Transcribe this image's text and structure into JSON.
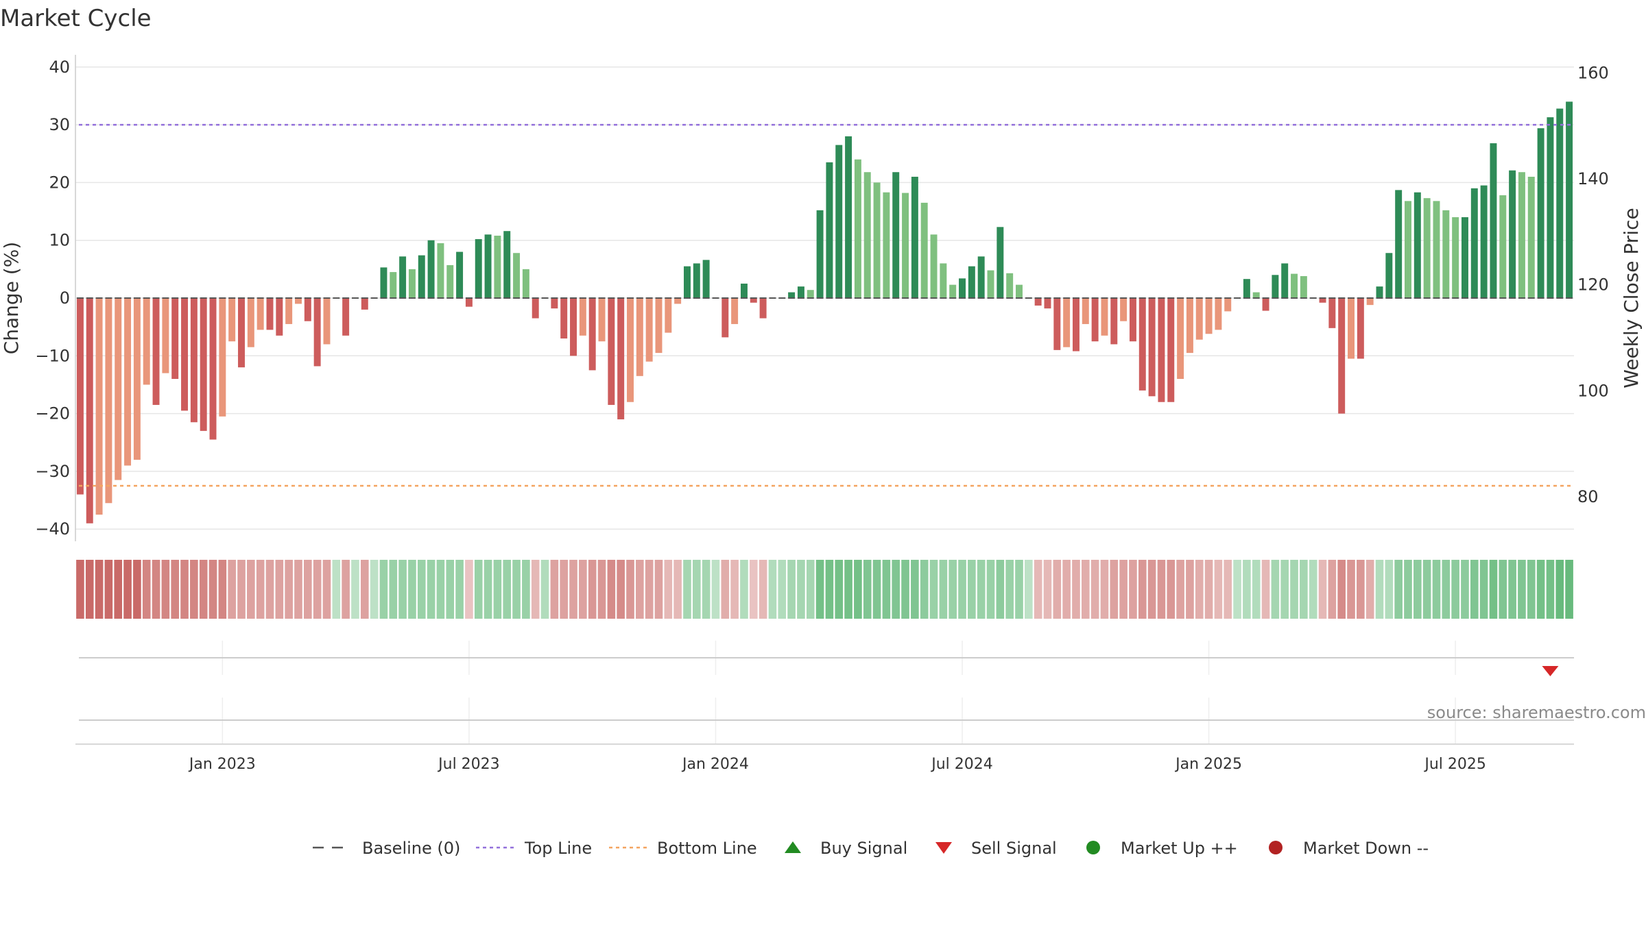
{
  "colors": {
    "dark_green": "#2e8b57",
    "light_green": "#7fc07f",
    "dark_red": "#cd5c5c",
    "light_red": "#e9967a",
    "top_line": "#9370db",
    "bottom_line": "#f4a460",
    "baseline": "#555555",
    "buy": "#228b22",
    "sell": "#d62728",
    "market_up": "#228b22",
    "market_down": "#b22222",
    "grid": "#e6e6e6"
  },
  "chart_data": {
    "type": "bar",
    "title": "Market Cycle",
    "ylabel": "Change (%)",
    "y2label": "Weekly Close Price",
    "source": "source: sharemaestro.com",
    "ylim": [
      -42,
      42
    ],
    "y2lim": [
      71.7,
      163.3
    ],
    "yticks": [
      40,
      30,
      20,
      10,
      0,
      -10,
      -20,
      -30,
      -40
    ],
    "yticklabels": [
      "40",
      "30",
      "20",
      "10",
      "0",
      "−10",
      "−20",
      "−30",
      "−40"
    ],
    "y2ticks": [
      160,
      140,
      120,
      100,
      80
    ],
    "y2ticklabels": [
      "160",
      "140",
      "120",
      "100",
      "80"
    ],
    "top_line": 30,
    "bottom_line": -32.5,
    "xticks": [
      {
        "label": "Jan 2023",
        "index": 15
      },
      {
        "label": "Jul 2023",
        "index": 41
      },
      {
        "label": "Jan 2024",
        "index": 67
      },
      {
        "label": "Jul 2024",
        "index": 93
      },
      {
        "label": "Jan 2025",
        "index": 119
      },
      {
        "label": "Jul 2025",
        "index": 145
      }
    ],
    "values": [
      -34,
      -39,
      -37.5,
      -35.5,
      -31.5,
      -29,
      -28,
      -15,
      -18.5,
      -13,
      -14,
      -19.5,
      -21.5,
      -23,
      -24.5,
      -20.5,
      -7.5,
      -12,
      -8.5,
      -5.5,
      -5.5,
      -6.5,
      -4.5,
      -1,
      -4,
      -11.8,
      -8,
      0,
      -6.5,
      0,
      -2,
      0,
      5.3,
      4.5,
      7.2,
      5,
      7.4,
      10,
      9.5,
      5.7,
      8,
      -1.5,
      10.2,
      11,
      10.8,
      11.6,
      7.8,
      5,
      -3.5,
      0,
      -1.8,
      -7,
      -10,
      -6.5,
      -12.5,
      -7.5,
      -18.5,
      -21,
      -18,
      -13.5,
      -11,
      -9.5,
      -6,
      -1,
      5.5,
      6,
      6.6,
      0,
      -6.8,
      -4.5,
      2.5,
      -0.8,
      -3.5,
      0,
      0,
      1,
      2,
      1.4,
      15.2,
      23.5,
      26.5,
      28,
      24,
      21.8,
      20,
      18.3,
      21.8,
      18.2,
      21,
      16.5,
      11,
      6,
      2.3,
      3.4,
      5.5,
      7.2,
      4.8,
      12.3,
      4.3,
      2.3,
      0,
      -1.3,
      -1.8,
      -9,
      -8.5,
      -9.2,
      -4.5,
      -7.5,
      -6.5,
      -8,
      -4,
      -7.5,
      -16,
      -17,
      -18,
      -18,
      -14,
      -9.5,
      -7.2,
      -6.2,
      -5.5,
      -2.3,
      0,
      3.3,
      1,
      -2.2,
      4,
      6,
      4.2,
      3.8,
      0,
      -0.8,
      -5.2,
      -20,
      -10.5,
      -10.5,
      -1.2,
      2,
      7.8,
      18.7,
      16.8,
      18.3,
      17.3,
      16.8,
      15.2,
      14,
      14,
      19,
      19.5,
      26.8,
      17.8,
      22.1,
      21.8,
      21,
      29.4,
      31.3,
      32.8,
      34
    ],
    "band_strength": [
      1,
      1,
      1,
      1,
      1,
      1,
      1,
      0.75,
      0.75,
      0.75,
      0.75,
      0.75,
      0.75,
      0.75,
      0.75,
      0.75,
      0.5,
      0.5,
      0.5,
      0.5,
      0.5,
      0.5,
      0.5,
      0.5,
      0.5,
      0.5,
      0.5,
      0.2,
      0.5,
      0.2,
      0.5,
      0.2,
      0.5,
      0.5,
      0.5,
      0.5,
      0.5,
      0.5,
      0.5,
      0.5,
      0.5,
      0.2,
      0.5,
      0.5,
      0.5,
      0.5,
      0.5,
      0.5,
      0.3,
      0.3,
      0.5,
      0.5,
      0.5,
      0.5,
      0.6,
      0.6,
      0.7,
      0.7,
      0.6,
      0.5,
      0.5,
      0.5,
      0.3,
      0.3,
      0.4,
      0.4,
      0.4,
      0.2,
      0.4,
      0.3,
      0.3,
      0.2,
      0.3,
      0.3,
      0.3,
      0.4,
      0.4,
      0.4,
      0.8,
      0.8,
      0.8,
      0.8,
      0.8,
      0.7,
      0.7,
      0.7,
      0.7,
      0.7,
      0.7,
      0.6,
      0.5,
      0.5,
      0.5,
      0.5,
      0.5,
      0.5,
      0.5,
      0.6,
      0.5,
      0.5,
      0.2,
      0.3,
      0.3,
      0.4,
      0.4,
      0.4,
      0.4,
      0.4,
      0.4,
      0.5,
      0.5,
      0.5,
      0.6,
      0.6,
      0.6,
      0.6,
      0.5,
      0.5,
      0.4,
      0.4,
      0.3,
      0.3,
      0.2,
      0.3,
      0.3,
      0.3,
      0.4,
      0.4,
      0.4,
      0.4,
      0.3,
      0.3,
      0.5,
      0.7,
      0.6,
      0.6,
      0.4,
      0.3,
      0.3,
      0.6,
      0.6,
      0.6,
      0.6,
      0.6,
      0.6,
      0.6,
      0.6,
      0.7,
      0.7,
      0.8,
      0.7,
      0.7,
      0.7,
      0.7,
      0.8,
      0.8,
      0.9,
      0.9
    ],
    "signals": [
      {
        "type": "sell",
        "index": 155
      }
    ],
    "legend": [
      {
        "key": "baseline",
        "label": "Baseline (0)"
      },
      {
        "key": "top_line",
        "label": "Top Line"
      },
      {
        "key": "bottom_line",
        "label": "Bottom Line"
      },
      {
        "key": "buy",
        "label": "Buy Signal"
      },
      {
        "key": "sell",
        "label": "Sell Signal"
      },
      {
        "key": "market_up",
        "label": "Market Up ++"
      },
      {
        "key": "market_down",
        "label": "Market Down --"
      }
    ]
  }
}
